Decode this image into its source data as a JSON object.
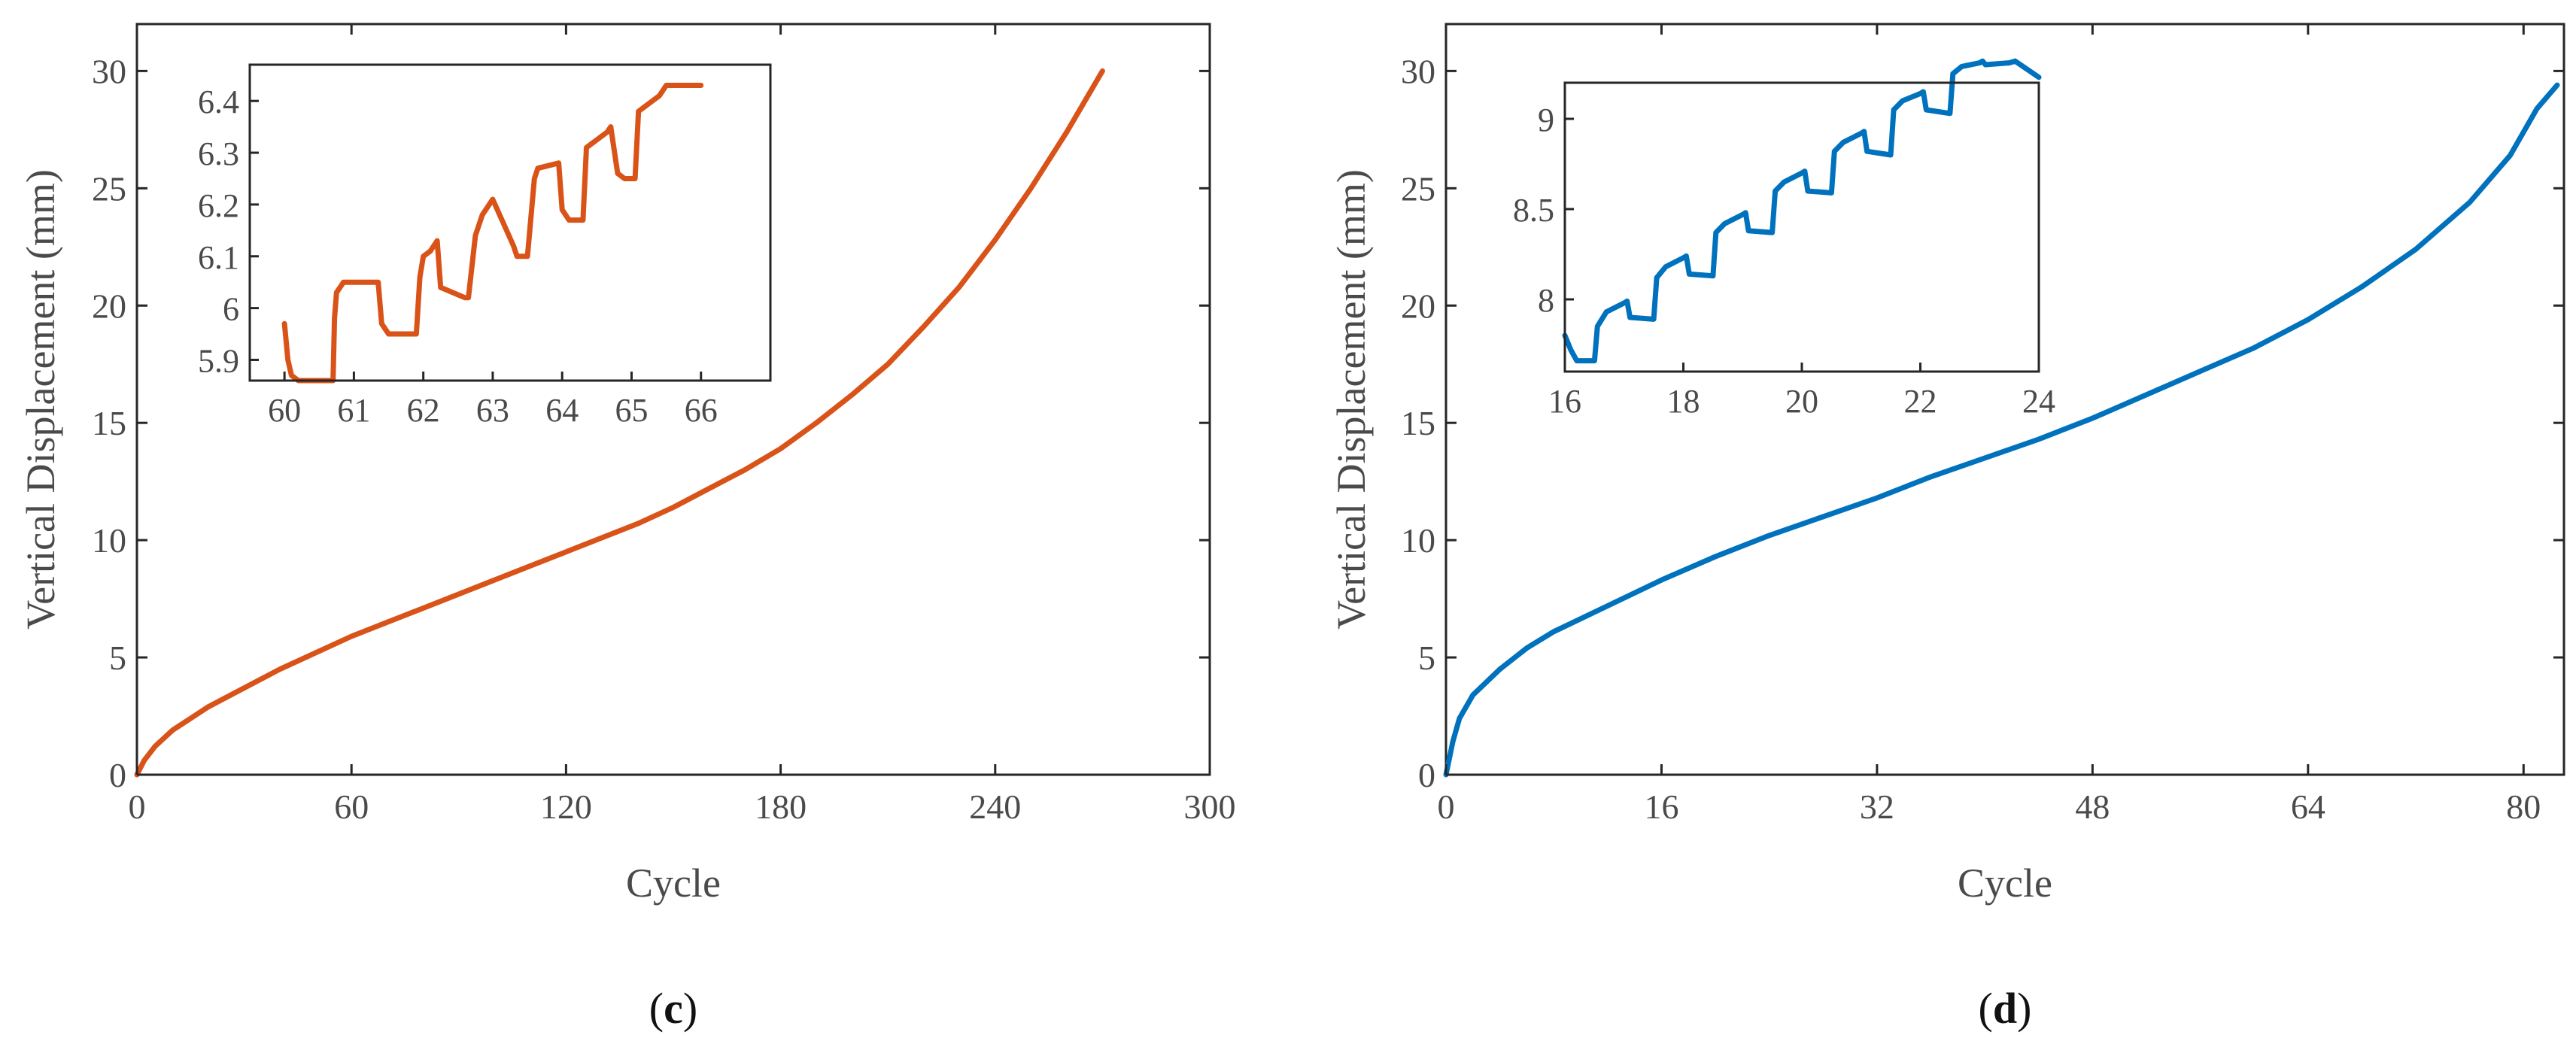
{
  "panels": [
    {
      "id": "c",
      "label_open": "(",
      "label_letter": "c",
      "label_close": ")",
      "color": "#D95319",
      "chart_data": {
        "type": "line",
        "xlabel": "Cycle",
        "ylabel": "Vertical Displacement (mm)",
        "xlim": [
          0,
          300
        ],
        "ylim": [
          0,
          32
        ],
        "xticks": [
          0,
          60,
          120,
          180,
          240,
          300
        ],
        "yticks": [
          0,
          5,
          10,
          15,
          20,
          25,
          30
        ],
        "series": [
          {
            "name": "main",
            "x": [
              0,
              2,
              5,
              10,
              20,
              30,
              40,
              50,
              60,
              70,
              80,
              90,
              100,
              110,
              120,
              130,
              140,
              150,
              160,
              170,
              180,
              190,
              200,
              210,
              220,
              230,
              240,
              250,
              260,
              270
            ],
            "values": [
              0,
              0.6,
              1.2,
              1.9,
              2.9,
              3.7,
              4.5,
              5.2,
              5.9,
              6.5,
              7.1,
              7.7,
              8.3,
              8.9,
              9.5,
              10.1,
              10.7,
              11.4,
              12.2,
              13.0,
              13.9,
              15.0,
              16.2,
              17.5,
              19.1,
              20.8,
              22.8,
              25.0,
              27.4,
              30.0
            ]
          }
        ],
        "inset": {
          "xlim": [
            59.5,
            67
          ],
          "ylim": [
            5.86,
            6.47
          ],
          "xticks": [
            60,
            61,
            62,
            63,
            64,
            65,
            66
          ],
          "yticks": [
            5.9,
            6.0,
            6.1,
            6.2,
            6.3,
            6.4
          ],
          "ytick_labels": [
            "5.9",
            "6",
            "6.1",
            "6.2",
            "6.3",
            "6.4"
          ],
          "x": [
            60.0,
            60.05,
            60.1,
            60.2,
            60.3,
            60.7,
            60.72,
            60.75,
            60.85,
            61.35,
            61.4,
            61.5,
            61.55,
            61.9,
            61.95,
            62.0,
            62.1,
            62.2,
            62.25,
            62.6,
            62.65,
            62.75,
            62.85,
            62.95,
            63.0,
            63.3,
            63.35,
            63.4,
            63.5,
            63.6,
            63.65,
            63.95,
            64.0,
            64.1,
            64.2,
            64.3,
            64.35,
            64.65,
            64.7,
            64.8,
            64.9,
            65.05,
            65.1,
            65.4,
            65.45,
            65.5,
            65.7,
            65.9,
            66.0
          ],
          "values": [
            5.97,
            5.9,
            5.87,
            5.86,
            5.86,
            5.86,
            5.98,
            6.03,
            6.05,
            6.05,
            5.97,
            5.95,
            5.95,
            5.95,
            6.06,
            6.1,
            6.11,
            6.13,
            6.04,
            6.02,
            6.02,
            6.14,
            6.18,
            6.2,
            6.21,
            6.12,
            6.1,
            6.1,
            6.1,
            6.25,
            6.27,
            6.28,
            6.19,
            6.17,
            6.17,
            6.17,
            6.31,
            6.34,
            6.35,
            6.26,
            6.25,
            6.25,
            6.38,
            6.41,
            6.42,
            6.43,
            6.43,
            6.43,
            6.43
          ]
        }
      }
    },
    {
      "id": "d",
      "label_open": "(",
      "label_letter": "d",
      "label_close": ")",
      "color": "#0072BD",
      "chart_data": {
        "type": "line",
        "xlabel": "Cycle",
        "ylabel": "Vertical Displacement (mm)",
        "xlim": [
          0,
          83
        ],
        "ylim": [
          0,
          32
        ],
        "xticks": [
          0,
          16,
          32,
          48,
          64,
          80
        ],
        "yticks": [
          0,
          5,
          10,
          15,
          20,
          25,
          30
        ],
        "series": [
          {
            "name": "main",
            "x": [
              0,
              0.5,
              1,
              2,
              4,
              6,
              8,
              12,
              16,
              20,
              24,
              28,
              32,
              36,
              40,
              44,
              48,
              52,
              56,
              60,
              64,
              68,
              72,
              76,
              79,
              81,
              82.5
            ],
            "values": [
              0,
              1.4,
              2.4,
              3.4,
              4.5,
              5.4,
              6.1,
              7.2,
              8.3,
              9.3,
              10.2,
              11.0,
              11.8,
              12.7,
              13.5,
              14.3,
              15.2,
              16.2,
              17.2,
              18.2,
              19.4,
              20.8,
              22.4,
              24.4,
              26.4,
              28.4,
              29.4
            ]
          }
        ],
        "inset": {
          "xlim": [
            16,
            24
          ],
          "ylim": [
            7.6,
            9.2
          ],
          "xticks": [
            16,
            18,
            20,
            22,
            24
          ],
          "yticks": [
            8.0,
            8.5,
            9.0
          ],
          "ytick_labels": [
            "8",
            "8.5",
            "9"
          ],
          "x": [
            16.0,
            16.1,
            16.2,
            16.35,
            16.5,
            16.55,
            16.7,
            17.0,
            17.05,
            17.1,
            17.5,
            17.55,
            17.7,
            18.0,
            18.05,
            18.1,
            18.5,
            18.55,
            18.7,
            19.0,
            19.05,
            19.1,
            19.5,
            19.55,
            19.7,
            20.0,
            20.05,
            20.1,
            20.5,
            20.55,
            20.7,
            21.0,
            21.05,
            21.1,
            21.5,
            21.55,
            21.7,
            22.0,
            22.05,
            22.1,
            22.5,
            22.55,
            22.7,
            23.0,
            23.05,
            23.1,
            23.5,
            23.6,
            24.0
          ],
          "values": [
            7.8,
            7.72,
            7.66,
            7.66,
            7.66,
            7.85,
            7.93,
            7.98,
            7.99,
            7.9,
            7.89,
            8.12,
            8.18,
            8.23,
            8.24,
            8.14,
            8.13,
            8.37,
            8.42,
            8.47,
            8.48,
            8.38,
            8.37,
            8.6,
            8.65,
            8.7,
            8.71,
            8.6,
            8.59,
            8.82,
            8.87,
            8.92,
            8.93,
            8.82,
            8.8,
            9.05,
            9.1,
            9.14,
            9.15,
            9.05,
            9.03,
            9.25,
            9.29,
            9.31,
            9.32,
            9.3,
            9.31,
            9.32,
            9.23
          ]
        }
      }
    }
  ]
}
